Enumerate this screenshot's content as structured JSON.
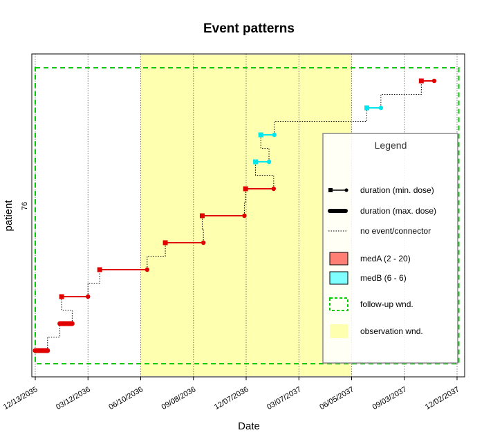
{
  "chart_data": {
    "type": "line",
    "title": "Event patterns",
    "xlabel": "Date",
    "ylabel": "patient",
    "y_tick_labels": [
      "76"
    ],
    "x_tick_labels": [
      "12/13/2035",
      "03/12/2036",
      "06/10/2036",
      "09/08/2036",
      "12/07/2036",
      "03/07/2037",
      "06/05/2037",
      "09/03/2037",
      "12/02/2037"
    ],
    "x_ticks": [
      "2035-12-13",
      "2036-03-12",
      "2036-06-10",
      "2036-09-08",
      "2036-12-07",
      "2037-03-07",
      "2037-06-05",
      "2037-09-03",
      "2037-12-02"
    ],
    "xlim": [
      "2035-12-11",
      "2037-12-06"
    ],
    "grid": "vertical dotted at x ticks",
    "observation_window": {
      "start": "2036-06-10",
      "end": "2037-06-05",
      "color": "#FFFFB0"
    },
    "follow_up_window": {
      "start": "2035-12-13",
      "end": "2037-12-05",
      "color": "#00CC00"
    },
    "medication_colors": {
      "medA": "#E00000",
      "medB": "#00E5EE"
    },
    "events": [
      {
        "med": "medA",
        "start": "2035-12-13",
        "end": "2036-01-03",
        "dose": "max"
      },
      {
        "med": "medA",
        "start": "2036-01-24",
        "end": "2036-02-14",
        "dose": "max"
      },
      {
        "med": "medA",
        "start": "2036-01-27",
        "end": "2036-03-12",
        "dose": "min"
      },
      {
        "med": "medA",
        "start": "2036-04-01",
        "end": "2036-06-21",
        "dose": "min"
      },
      {
        "med": "medA",
        "start": "2036-07-22",
        "end": "2036-09-25",
        "dose": "min"
      },
      {
        "med": "medA",
        "start": "2036-09-23",
        "end": "2036-12-04",
        "dose": "min"
      },
      {
        "med": "medA",
        "start": "2036-12-06",
        "end": "2037-01-23",
        "dose": "min"
      },
      {
        "med": "medB",
        "start": "2036-12-23",
        "end": "2037-01-15",
        "dose": "min"
      },
      {
        "med": "medB",
        "start": "2037-01-01",
        "end": "2037-01-24",
        "dose": "min"
      },
      {
        "med": "medB",
        "start": "2037-07-01",
        "end": "2037-07-25",
        "dose": "min"
      },
      {
        "med": "medA",
        "start": "2037-10-02",
        "end": "2037-10-24",
        "dose": "min"
      }
    ],
    "legend": {
      "title": "Legend",
      "placement": "right",
      "items": [
        {
          "kind": "line-min",
          "label": "duration (min. dose)"
        },
        {
          "kind": "line-max",
          "label": "duration (max. dose)"
        },
        {
          "kind": "connector",
          "label": "no event/connector"
        },
        {
          "kind": "spacer",
          "label": ""
        },
        {
          "kind": "med-box",
          "label": "medA (2 - 20)",
          "color": "#FF7F74"
        },
        {
          "kind": "med-box",
          "label": "medB (6 - 6)",
          "color": "#7FFFFF"
        },
        {
          "kind": "fu-box",
          "label": "follow-up wnd."
        },
        {
          "kind": "obs-box",
          "label": "observation wnd."
        }
      ]
    }
  }
}
